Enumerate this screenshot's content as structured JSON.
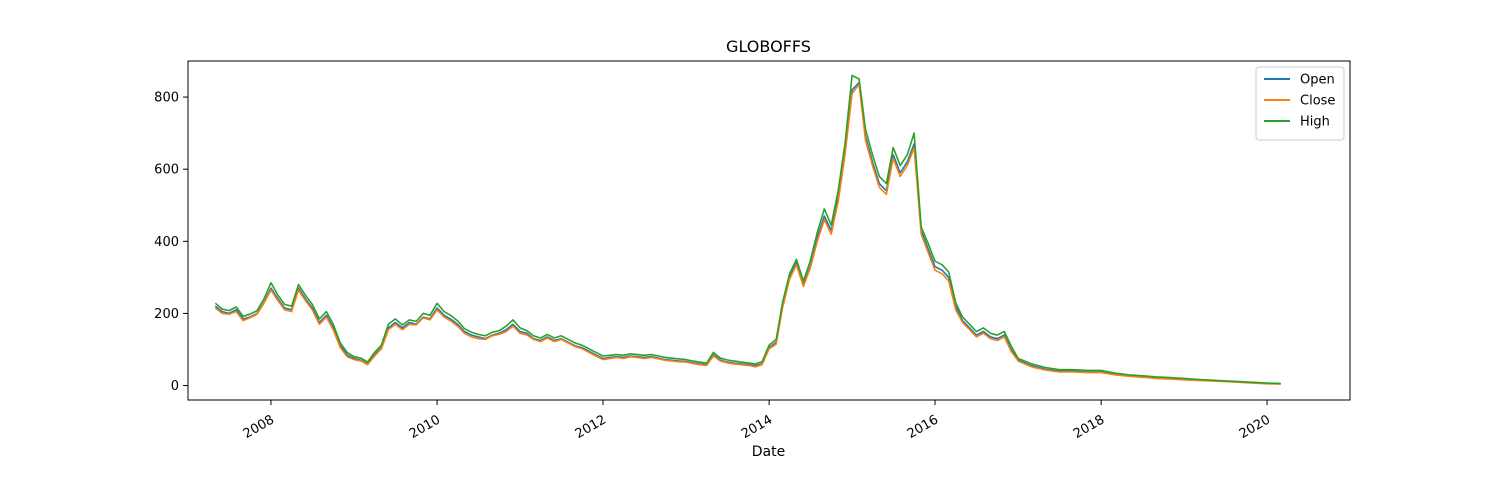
{
  "chart_data": {
    "type": "line",
    "title": "GLOBOFFS",
    "xlabel": "Date",
    "ylabel": "",
    "xlim": [
      "2007-01-01",
      "2020-12-31"
    ],
    "ylim": [
      -40,
      900
    ],
    "x_ticks": [
      "2008-01-01",
      "2010-01-01",
      "2012-01-01",
      "2014-01-01",
      "2016-01-01",
      "2018-01-01",
      "2020-01-01"
    ],
    "x_tick_labels": [
      "2008",
      "2010",
      "2012",
      "2014",
      "2016",
      "2018",
      "2020"
    ],
    "y_ticks": [
      0,
      200,
      400,
      600,
      800
    ],
    "y_tick_labels": [
      "0",
      "200",
      "400",
      "600",
      "800"
    ],
    "grid": false,
    "legend_position": "top-right",
    "x": [
      "2007-05-01",
      "2007-06-01",
      "2007-07-01",
      "2007-08-01",
      "2007-09-01",
      "2007-10-01",
      "2007-11-01",
      "2007-12-01",
      "2008-01-01",
      "2008-02-01",
      "2008-03-01",
      "2008-04-01",
      "2008-05-01",
      "2008-06-01",
      "2008-07-01",
      "2008-08-01",
      "2008-09-01",
      "2008-10-01",
      "2008-11-01",
      "2008-12-01",
      "2009-01-01",
      "2009-02-01",
      "2009-03-01",
      "2009-04-01",
      "2009-05-01",
      "2009-06-01",
      "2009-07-01",
      "2009-08-01",
      "2009-09-01",
      "2009-10-01",
      "2009-11-01",
      "2009-12-01",
      "2010-01-01",
      "2010-02-01",
      "2010-03-01",
      "2010-04-01",
      "2010-05-01",
      "2010-06-01",
      "2010-07-01",
      "2010-08-01",
      "2010-09-01",
      "2010-10-01",
      "2010-11-01",
      "2010-12-01",
      "2011-01-01",
      "2011-02-01",
      "2011-03-01",
      "2011-04-01",
      "2011-05-01",
      "2011-06-01",
      "2011-07-01",
      "2011-08-01",
      "2011-09-01",
      "2011-10-01",
      "2011-11-01",
      "2011-12-01",
      "2012-01-01",
      "2012-02-01",
      "2012-03-01",
      "2012-04-01",
      "2012-05-01",
      "2012-06-01",
      "2012-07-01",
      "2012-08-01",
      "2012-09-01",
      "2012-10-01",
      "2012-11-01",
      "2012-12-01",
      "2013-01-01",
      "2013-02-01",
      "2013-03-01",
      "2013-04-01",
      "2013-05-01",
      "2013-06-01",
      "2013-07-01",
      "2013-08-01",
      "2013-09-01",
      "2013-10-01",
      "2013-11-01",
      "2013-12-01",
      "2014-01-01",
      "2014-02-01",
      "2014-03-01",
      "2014-04-01",
      "2014-05-01",
      "2014-06-01",
      "2014-07-01",
      "2014-08-01",
      "2014-09-01",
      "2014-10-01",
      "2014-11-01",
      "2014-12-01",
      "2015-01-01",
      "2015-02-01",
      "2015-03-01",
      "2015-04-01",
      "2015-05-01",
      "2015-06-01",
      "2015-07-01",
      "2015-08-01",
      "2015-09-01",
      "2015-10-01",
      "2015-11-01",
      "2015-12-01",
      "2016-01-01",
      "2016-02-01",
      "2016-03-01",
      "2016-04-01",
      "2016-05-01",
      "2016-06-01",
      "2016-07-01",
      "2016-08-01",
      "2016-09-01",
      "2016-10-01",
      "2016-11-01",
      "2016-12-01",
      "2017-01-01",
      "2017-03-01",
      "2017-05-01",
      "2017-07-01",
      "2017-09-01",
      "2017-11-01",
      "2018-01-01",
      "2018-03-01",
      "2018-05-01",
      "2018-07-01",
      "2018-09-01",
      "2018-11-01",
      "2019-01-01",
      "2019-03-01",
      "2019-05-01",
      "2019-07-01",
      "2019-09-01",
      "2019-11-01",
      "2020-01-01",
      "2020-03-01"
    ],
    "series": [
      {
        "name": "Open",
        "color": "#1f77b4",
        "values": [
          220,
          205,
          200,
          210,
          185,
          190,
          200,
          230,
          270,
          240,
          215,
          210,
          270,
          240,
          215,
          175,
          195,
          160,
          110,
          85,
          75,
          70,
          60,
          85,
          105,
          160,
          175,
          160,
          175,
          170,
          190,
          185,
          215,
          195,
          185,
          170,
          150,
          140,
          135,
          130,
          140,
          145,
          155,
          170,
          150,
          145,
          130,
          125,
          135,
          125,
          130,
          120,
          110,
          105,
          95,
          85,
          75,
          78,
          80,
          78,
          82,
          80,
          78,
          80,
          76,
          72,
          70,
          68,
          67,
          63,
          60,
          58,
          85,
          70,
          65,
          62,
          60,
          58,
          55,
          60,
          105,
          120,
          220,
          300,
          340,
          280,
          330,
          410,
          470,
          430,
          520,
          650,
          820,
          840,
          690,
          620,
          560,
          540,
          640,
          590,
          620,
          670,
          430,
          380,
          330,
          320,
          300,
          220,
          180,
          160,
          140,
          150,
          135,
          130,
          140,
          100,
          70,
          55,
          45,
          40,
          40,
          38,
          38,
          32,
          28,
          25,
          22,
          20,
          18,
          15,
          14,
          12,
          10,
          8,
          6,
          5
        ]
      },
      {
        "name": "Close",
        "color": "#ff7f0e",
        "values": [
          215,
          200,
          198,
          205,
          180,
          188,
          198,
          228,
          265,
          235,
          210,
          205,
          265,
          235,
          210,
          170,
          190,
          155,
          105,
          80,
          72,
          68,
          58,
          82,
          102,
          155,
          170,
          155,
          170,
          168,
          188,
          182,
          210,
          190,
          180,
          165,
          145,
          135,
          130,
          128,
          138,
          142,
          150,
          165,
          145,
          140,
          128,
          122,
          132,
          122,
          128,
          118,
          108,
          102,
          92,
          82,
          72,
          75,
          78,
          75,
          80,
          78,
          75,
          78,
          74,
          70,
          68,
          66,
          65,
          61,
          58,
          56,
          82,
          68,
          63,
          60,
          58,
          56,
          52,
          58,
          102,
          115,
          215,
          295,
          335,
          275,
          325,
          400,
          460,
          420,
          510,
          640,
          810,
          835,
          680,
          610,
          550,
          530,
          630,
          580,
          610,
          660,
          420,
          370,
          320,
          310,
          290,
          210,
          175,
          155,
          135,
          145,
          130,
          125,
          135,
          95,
          68,
          52,
          43,
          38,
          38,
          36,
          36,
          30,
          26,
          23,
          20,
          18,
          16,
          14,
          13,
          11,
          9,
          7,
          5,
          4
        ]
      },
      {
        "name": "High",
        "color": "#2ca02c",
        "values": [
          228,
          212,
          208,
          218,
          192,
          198,
          208,
          240,
          285,
          250,
          225,
          220,
          280,
          250,
          225,
          185,
          205,
          170,
          118,
          92,
          80,
          76,
          65,
          92,
          112,
          170,
          185,
          168,
          182,
          178,
          200,
          195,
          228,
          205,
          195,
          180,
          158,
          148,
          142,
          138,
          148,
          152,
          165,
          182,
          160,
          152,
          138,
          132,
          142,
          132,
          138,
          128,
          118,
          112,
          102,
          92,
          82,
          84,
          86,
          84,
          88,
          86,
          84,
          86,
          82,
          78,
          76,
          74,
          72,
          68,
          65,
          62,
          92,
          76,
          71,
          68,
          65,
          63,
          60,
          66,
          112,
          128,
          230,
          310,
          350,
          290,
          345,
          425,
          490,
          445,
          540,
          670,
          860,
          850,
          710,
          640,
          580,
          560,
          660,
          610,
          640,
          700,
          440,
          395,
          345,
          335,
          315,
          230,
          190,
          170,
          150,
          160,
          145,
          140,
          150,
          110,
          75,
          60,
          50,
          44,
          44,
          42,
          42,
          35,
          30,
          27,
          24,
          22,
          20,
          17,
          15,
          13,
          11,
          9,
          7,
          6
        ]
      }
    ]
  }
}
